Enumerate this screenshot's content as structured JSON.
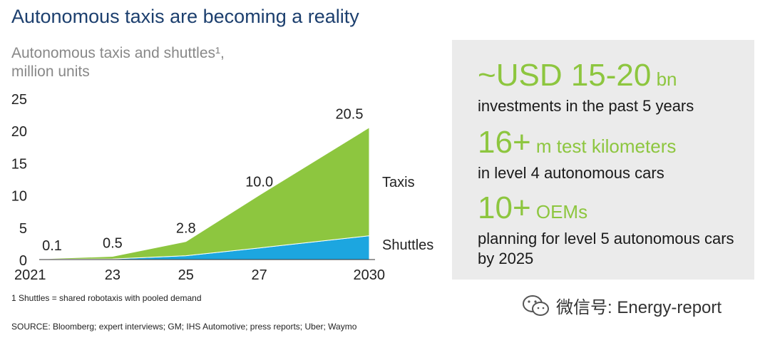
{
  "header": {
    "title": "Autonomous taxis are becoming a reality",
    "subtitle_line1": "Autonomous taxis and shuttles¹,",
    "subtitle_line2": "million units"
  },
  "chart_data": {
    "type": "area",
    "stacked": true,
    "x": [
      2021,
      2023,
      2025,
      2027,
      2030
    ],
    "x_tick_labels": [
      "2021",
      "23",
      "25",
      "27",
      "2030"
    ],
    "series": [
      {
        "name": "Shuttles",
        "values": [
          0.02,
          0.1,
          0.6,
          1.8,
          3.7
        ],
        "color": "#1ca6e0"
      },
      {
        "name": "Taxis",
        "values": [
          0.08,
          0.4,
          2.2,
          8.2,
          16.8
        ],
        "color": "#8dc63f"
      }
    ],
    "totals": [
      0.1,
      0.5,
      2.8,
      10.0,
      20.5
    ],
    "total_labels": [
      "0.1",
      "0.5",
      "2.8",
      "10.0",
      "20.5"
    ],
    "ylim": [
      0,
      25
    ],
    "y_ticks": [
      0,
      5,
      10,
      15,
      20,
      25
    ],
    "grid": false,
    "xlabel": "",
    "ylabel": ""
  },
  "notes": {
    "footnote": "1 Shuttles = shared robotaxis with pooled demand",
    "source": "SOURCE: Bloomberg; expert interviews; GM; IHS Automotive; press reports; Uber; Waymo"
  },
  "stats": [
    {
      "big": "~USD 15-20",
      "unit": " bn",
      "desc": "investments in the past 5 years"
    },
    {
      "big": "16+",
      "unit": " m test kilometers",
      "desc": "in level 4 autonomous cars"
    },
    {
      "big": "10+",
      "unit": " OEMs",
      "desc": "planning for level 5 autonomous cars by 2025"
    }
  ],
  "watermark": {
    "text": "微信号: Energy-report",
    "icon": "wechat-icon"
  },
  "colors": {
    "accent": "#8dc63f",
    "title": "#1c3f6e",
    "panel": "#ebebeb",
    "shuttles": "#1ca6e0"
  }
}
